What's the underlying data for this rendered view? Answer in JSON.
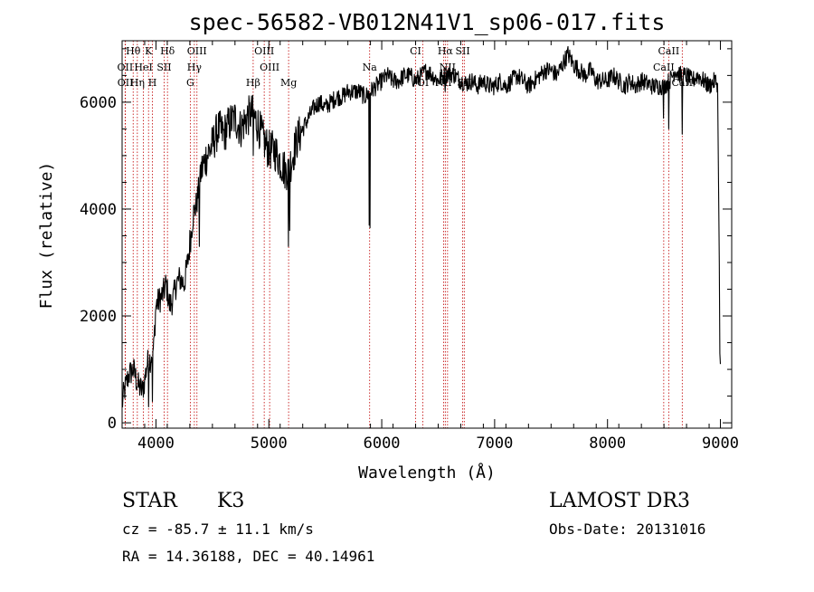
{
  "chart_data": {
    "type": "line",
    "title": "spec-56582-VB012N41V1_sp06-017.fits",
    "xlabel": "Wavelength (Å)",
    "ylabel": "Flux (relative)",
    "xlim": [
      3700,
      9100
    ],
    "ylim": [
      -100,
      7150
    ],
    "x_ticks": [
      4000,
      5000,
      6000,
      7000,
      8000,
      9000
    ],
    "y_ticks": [
      0,
      2000,
      4000,
      6000
    ],
    "colors": {
      "spectrum": "#000000",
      "lines": "#c00000"
    },
    "spectrum_anchors": [
      [
        3700,
        350
      ],
      [
        3720,
        600
      ],
      [
        3760,
        900
      ],
      [
        3800,
        1000
      ],
      [
        3840,
        700
      ],
      [
        3880,
        600
      ],
      [
        3900,
        800
      ],
      [
        3920,
        1100
      ],
      [
        3950,
        1200
      ],
      [
        3980,
        1400
      ],
      [
        4000,
        2200
      ],
      [
        4030,
        2300
      ],
      [
        4060,
        2400
      ],
      [
        4090,
        2600
      ],
      [
        4120,
        2200
      ],
      [
        4150,
        2300
      ],
      [
        4180,
        2600
      ],
      [
        4210,
        2700
      ],
      [
        4250,
        2600
      ],
      [
        4280,
        3000
      ],
      [
        4300,
        3300
      ],
      [
        4330,
        3900
      ],
      [
        4360,
        4100
      ],
      [
        4400,
        4700
      ],
      [
        4450,
        5000
      ],
      [
        4500,
        5200
      ],
      [
        4550,
        5500
      ],
      [
        4600,
        5400
      ],
      [
        4650,
        5600
      ],
      [
        4700,
        5700
      ],
      [
        4750,
        5500
      ],
      [
        4800,
        5700
      ],
      [
        4850,
        5800
      ],
      [
        4900,
        5600
      ],
      [
        4950,
        5300
      ],
      [
        5000,
        5100
      ],
      [
        5050,
        5100
      ],
      [
        5100,
        4900
      ],
      [
        5150,
        4700
      ],
      [
        5200,
        4900
      ],
      [
        5250,
        5300
      ],
      [
        5300,
        5500
      ],
      [
        5350,
        5700
      ],
      [
        5400,
        5900
      ],
      [
        5450,
        6000
      ],
      [
        5500,
        5900
      ],
      [
        5550,
        6000
      ],
      [
        5600,
        6100
      ],
      [
        5650,
        6100
      ],
      [
        5700,
        6200
      ],
      [
        5750,
        6200
      ],
      [
        5800,
        6200
      ],
      [
        5850,
        6100
      ],
      [
        5900,
        6200
      ],
      [
        5950,
        6300
      ],
      [
        6000,
        6400
      ],
      [
        6050,
        6500
      ],
      [
        6100,
        6400
      ],
      [
        6150,
        6400
      ],
      [
        6200,
        6500
      ],
      [
        6250,
        6500
      ],
      [
        6300,
        6400
      ],
      [
        6350,
        6500
      ],
      [
        6400,
        6600
      ],
      [
        6450,
        6500
      ],
      [
        6500,
        6400
      ],
      [
        6550,
        6500
      ],
      [
        6600,
        6550
      ],
      [
        6650,
        6500
      ],
      [
        6700,
        6400
      ],
      [
        6750,
        6350
      ],
      [
        6800,
        6400
      ],
      [
        6850,
        6300
      ],
      [
        6900,
        6400
      ],
      [
        6950,
        6300
      ],
      [
        7000,
        6300
      ],
      [
        7050,
        6400
      ],
      [
        7100,
        6300
      ],
      [
        7150,
        6400
      ],
      [
        7200,
        6500
      ],
      [
        7250,
        6400
      ],
      [
        7300,
        6300
      ],
      [
        7350,
        6400
      ],
      [
        7400,
        6500
      ],
      [
        7450,
        6600
      ],
      [
        7500,
        6600
      ],
      [
        7550,
        6500
      ],
      [
        7600,
        6700
      ],
      [
        7650,
        6900
      ],
      [
        7700,
        6700
      ],
      [
        7750,
        6600
      ],
      [
        7800,
        6500
      ],
      [
        7850,
        6600
      ],
      [
        7900,
        6400
      ],
      [
        7950,
        6400
      ],
      [
        8000,
        6400
      ],
      [
        8050,
        6500
      ],
      [
        8100,
        6400
      ],
      [
        8150,
        6300
      ],
      [
        8200,
        6400
      ],
      [
        8250,
        6300
      ],
      [
        8300,
        6400
      ],
      [
        8350,
        6350
      ],
      [
        8400,
        6300
      ],
      [
        8450,
        6300
      ],
      [
        8500,
        6300
      ],
      [
        8550,
        6400
      ],
      [
        8600,
        6600
      ],
      [
        8650,
        6500
      ],
      [
        8700,
        6500
      ],
      [
        8750,
        6400
      ],
      [
        8800,
        6500
      ],
      [
        8850,
        6400
      ],
      [
        8900,
        6300
      ],
      [
        8950,
        6400
      ],
      [
        8975,
        6350
      ]
    ],
    "spectrum_dips": [
      [
        3934,
        300
      ],
      [
        3969,
        400
      ],
      [
        4300,
        3600
      ],
      [
        4383,
        3300
      ],
      [
        4860,
        5000
      ],
      [
        5172,
        3300
      ],
      [
        5183,
        3600
      ],
      [
        5890,
        3700
      ],
      [
        5896,
        3650
      ],
      [
        6563,
        6200
      ],
      [
        8498,
        5700
      ],
      [
        8542,
        5500
      ],
      [
        8662,
        5400
      ]
    ],
    "spectrum_tail": [
      [
        8990,
        3000
      ],
      [
        8995,
        1300
      ],
      [
        9000,
        1100
      ]
    ],
    "annotations": [
      {
        "label": "Hθ",
        "x": 3798,
        "row": 1
      },
      {
        "label": "K",
        "x": 3934,
        "row": 1
      },
      {
        "label": "Hδ",
        "x": 4102,
        "row": 1
      },
      {
        "label": "OIII",
        "x": 4363,
        "row": 1
      },
      {
        "label": "OIII",
        "x": 4959,
        "row": 1
      },
      {
        "label": "CI",
        "x": 6300,
        "row": 1
      },
      {
        "label": "Hα",
        "x": 6563,
        "row": 1
      },
      {
        "label": "SII",
        "x": 6717,
        "row": 1
      },
      {
        "label": "CaII",
        "x": 8542,
        "row": 1
      },
      {
        "label": "OII",
        "x": 3727,
        "row": 2
      },
      {
        "label": "HeI",
        "x": 3889,
        "row": 2
      },
      {
        "label": "SII",
        "x": 4072,
        "row": 2
      },
      {
        "label": "Hγ",
        "x": 4340,
        "row": 2
      },
      {
        "label": "OIII",
        "x": 5007,
        "row": 2
      },
      {
        "label": "Na",
        "x": 5893,
        "row": 2
      },
      {
        "label": "NII",
        "x": 6583,
        "row": 2
      },
      {
        "label": "CaII",
        "x": 8498,
        "row": 2
      },
      {
        "label": "OII",
        "x": 3729,
        "row": 3
      },
      {
        "label": "Hη",
        "x": 3835,
        "row": 3
      },
      {
        "label": "H",
        "x": 3969,
        "row": 3
      },
      {
        "label": "G",
        "x": 4304,
        "row": 3
      },
      {
        "label": "Hβ",
        "x": 4861,
        "row": 3
      },
      {
        "label": "Mg",
        "x": 5175,
        "row": 3
      },
      {
        "label": "OI",
        "x": 6364,
        "row": 3
      },
      {
        "label": "NII",
        "x": 6548,
        "row": 3
      },
      {
        "label": "SII",
        "x": 6731,
        "row": 3
      },
      {
        "label": "CaII",
        "x": 8662,
        "row": 3
      }
    ],
    "line_markers": [
      3727,
      3729,
      3798,
      3835,
      3889,
      3934,
      3969,
      4072,
      4102,
      4304,
      4340,
      4363,
      4861,
      4959,
      5007,
      5175,
      5893,
      6300,
      6364,
      6548,
      6563,
      6583,
      6717,
      6731,
      8498,
      8542,
      8662
    ]
  },
  "info": {
    "object_type": "STAR",
    "subclass": "K3",
    "survey": "LAMOST DR3",
    "redshift": "cz = -85.7 ± 11.1 km/s",
    "obs_date": "Obs-Date: 20131016",
    "coords": "RA =  14.36188, DEC =  40.14961"
  }
}
